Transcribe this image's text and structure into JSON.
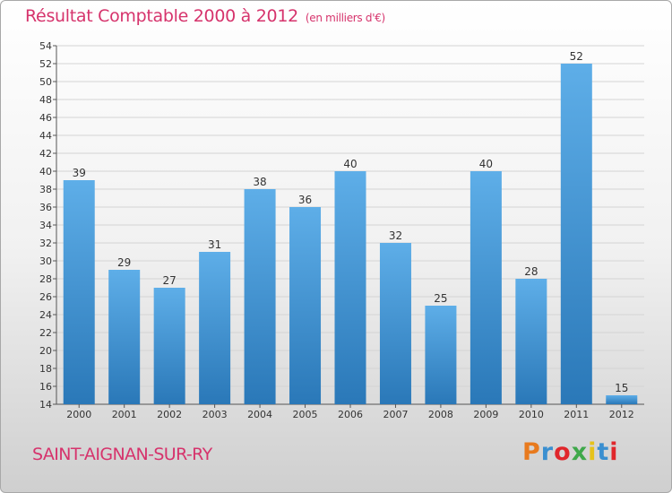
{
  "title": "Résultat Comptable 2000 à 2012",
  "unit": "(en milliers d'€)",
  "commune": "SAINT-AIGNAN-SUR-RY",
  "logo": {
    "text": "Proxiti",
    "letter_colors": [
      "#e87a1e",
      "#3a8fd0",
      "#e0262b",
      "#3ea84a",
      "#e6c21a",
      "#3a8fd0",
      "#e0262b"
    ]
  },
  "colors": {
    "title": "#d6336c",
    "bar_light": "#5eaee8",
    "bar_dark": "#2a78b8",
    "grid": "#d4d4d4",
    "axis": "#555555"
  },
  "chart_data": {
    "type": "bar",
    "categories": [
      "2000",
      "2001",
      "2002",
      "2003",
      "2004",
      "2005",
      "2006",
      "2007",
      "2008",
      "2009",
      "2010",
      "2011",
      "2012"
    ],
    "values": [
      39,
      29,
      27,
      31,
      38,
      36,
      40,
      32,
      25,
      40,
      28,
      52,
      15
    ],
    "data_labels": [
      "39",
      "29",
      "27",
      "31",
      "38",
      "36",
      "40",
      "32",
      "25",
      "40",
      "28",
      "52",
      "15"
    ],
    "ylim": [
      14,
      54
    ],
    "yticks": [
      14,
      16,
      18,
      20,
      22,
      24,
      26,
      28,
      30,
      32,
      34,
      36,
      38,
      40,
      42,
      44,
      46,
      48,
      50,
      52,
      54
    ],
    "ytick_labels": [
      "14",
      "16",
      "18",
      "20",
      "22",
      "24",
      "26",
      "28",
      "30",
      "32",
      "34",
      "36",
      "38",
      "40",
      "42",
      "44",
      "46",
      "48",
      "50",
      "52",
      "54"
    ],
    "xlabel": "",
    "ylabel": "",
    "grid": true,
    "legend": "none"
  }
}
